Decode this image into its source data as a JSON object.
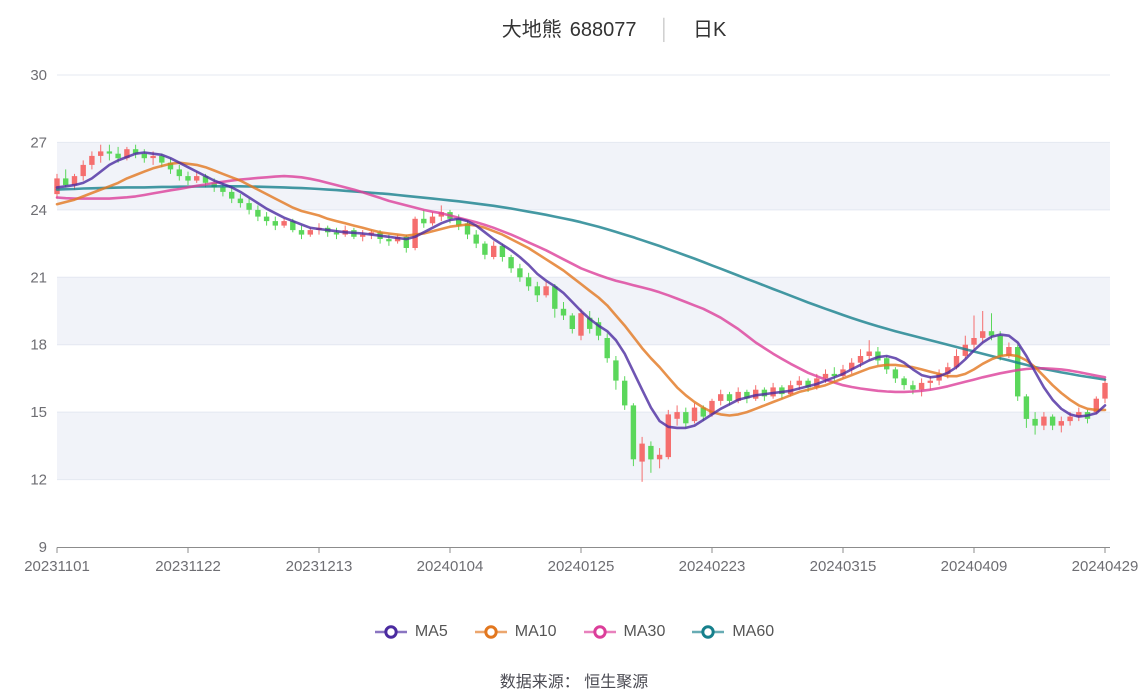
{
  "title": {
    "stock_name": "大地熊",
    "stock_code": "688077",
    "separator": "│",
    "period": "日K"
  },
  "footer": {
    "text": "数据来源： 恒生聚源"
  },
  "colors": {
    "background": "#ffffff",
    "band": "#f1f3f9",
    "grid": "#e4e8f1",
    "axis": "#8c8c8c",
    "axis_label": "#6e6e73",
    "title_text": "#333333",
    "separator_color": "#cccccc",
    "legend_text": "#555555",
    "footer_text": "#4a4a52",
    "up": "#f56e6e",
    "down": "#5bd75b"
  },
  "chart_data": {
    "type": "candlestick",
    "title": "大地熊 688077 日K",
    "legend_position": "bottom",
    "grid": "horizontal-only",
    "ylim": [
      9,
      30
    ],
    "y_axis": {
      "min": 9,
      "max": 30,
      "ticks": [
        9,
        12,
        15,
        18,
        21,
        24,
        27,
        30
      ]
    },
    "x_axis": {
      "labels": [
        "20231101",
        "20231122",
        "20231213",
        "20240104",
        "20240125",
        "20240223",
        "20240315",
        "20240409",
        "20240429"
      ],
      "tick_indices": [
        0,
        15,
        30,
        45,
        60,
        75,
        90,
        105,
        120
      ]
    },
    "bands": [
      [
        24,
        27
      ],
      [
        18,
        21
      ],
      [
        12,
        15
      ]
    ],
    "candles": [
      [
        24.7,
        25.6,
        24.5,
        25.4
      ],
      [
        25.4,
        25.8,
        25.0,
        25.1
      ],
      [
        25.1,
        25.6,
        24.9,
        25.5
      ],
      [
        25.5,
        26.2,
        25.3,
        26.0
      ],
      [
        26.0,
        26.6,
        25.8,
        26.4
      ],
      [
        26.4,
        26.9,
        26.1,
        26.6
      ],
      [
        26.6,
        26.9,
        26.2,
        26.5
      ],
      [
        26.5,
        26.8,
        26.1,
        26.3
      ],
      [
        26.3,
        26.8,
        26.2,
        26.7
      ],
      [
        26.7,
        26.9,
        26.3,
        26.5
      ],
      [
        26.5,
        26.7,
        26.1,
        26.3
      ],
      [
        26.3,
        26.6,
        26.0,
        26.4
      ],
      [
        26.4,
        26.5,
        25.9,
        26.1
      ],
      [
        26.1,
        26.3,
        25.6,
        25.8
      ],
      [
        25.8,
        26.0,
        25.3,
        25.5
      ],
      [
        25.5,
        25.7,
        25.1,
        25.3
      ],
      [
        25.3,
        25.7,
        25.2,
        25.5
      ],
      [
        25.5,
        25.6,
        25.0,
        25.2
      ],
      [
        25.2,
        25.4,
        24.8,
        25.0
      ],
      [
        25.0,
        25.2,
        24.6,
        24.8
      ],
      [
        24.8,
        25.0,
        24.3,
        24.5
      ],
      [
        24.5,
        24.7,
        24.1,
        24.3
      ],
      [
        24.3,
        24.5,
        23.8,
        24.0
      ],
      [
        24.0,
        24.2,
        23.5,
        23.7
      ],
      [
        23.7,
        23.9,
        23.3,
        23.5
      ],
      [
        23.5,
        23.7,
        23.1,
        23.3
      ],
      [
        23.3,
        23.6,
        23.2,
        23.5
      ],
      [
        23.5,
        23.6,
        23.0,
        23.1
      ],
      [
        23.1,
        23.3,
        22.7,
        22.9
      ],
      [
        22.9,
        23.2,
        22.8,
        23.1
      ],
      [
        23.1,
        23.4,
        22.9,
        23.2
      ],
      [
        23.2,
        23.3,
        22.8,
        23.0
      ],
      [
        23.0,
        23.2,
        22.7,
        22.9
      ],
      [
        22.9,
        23.3,
        22.8,
        23.1
      ],
      [
        23.1,
        23.2,
        22.7,
        22.8
      ],
      [
        22.8,
        23.1,
        22.6,
        22.9
      ],
      [
        22.9,
        23.1,
        22.7,
        23.0
      ],
      [
        23.0,
        23.1,
        22.5,
        22.7
      ],
      [
        22.7,
        22.9,
        22.4,
        22.6
      ],
      [
        22.6,
        22.9,
        22.5,
        22.8
      ],
      [
        22.8,
        22.9,
        22.1,
        22.3
      ],
      [
        22.3,
        23.7,
        22.2,
        23.6
      ],
      [
        23.6,
        24.0,
        23.2,
        23.4
      ],
      [
        23.4,
        23.9,
        23.3,
        23.7
      ],
      [
        23.7,
        24.2,
        23.5,
        23.9
      ],
      [
        23.9,
        24.0,
        23.4,
        23.6
      ],
      [
        23.6,
        23.8,
        23.1,
        23.3
      ],
      [
        23.4,
        23.5,
        22.7,
        22.9
      ],
      [
        22.9,
        23.1,
        22.3,
        22.5
      ],
      [
        22.5,
        22.6,
        21.8,
        22.0
      ],
      [
        21.9,
        22.6,
        21.8,
        22.4
      ],
      [
        22.4,
        22.5,
        21.7,
        21.9
      ],
      [
        21.9,
        22.0,
        21.2,
        21.4
      ],
      [
        21.4,
        21.6,
        20.8,
        21.0
      ],
      [
        21.0,
        21.2,
        20.4,
        20.6
      ],
      [
        20.6,
        20.8,
        19.9,
        20.2
      ],
      [
        20.2,
        20.8,
        20.1,
        20.6
      ],
      [
        20.6,
        20.7,
        19.2,
        19.6
      ],
      [
        19.6,
        19.9,
        19.1,
        19.3
      ],
      [
        19.3,
        19.4,
        18.5,
        18.7
      ],
      [
        18.4,
        19.6,
        18.2,
        19.4
      ],
      [
        19.2,
        19.5,
        18.5,
        18.7
      ],
      [
        19.0,
        19.2,
        18.2,
        18.4
      ],
      [
        18.3,
        18.5,
        17.2,
        17.4
      ],
      [
        17.3,
        17.5,
        16.0,
        16.4
      ],
      [
        16.4,
        16.6,
        15.1,
        15.3
      ],
      [
        15.3,
        15.4,
        12.6,
        12.9
      ],
      [
        12.8,
        13.9,
        11.9,
        13.6
      ],
      [
        13.5,
        13.7,
        12.3,
        12.9
      ],
      [
        12.9,
        13.4,
        12.5,
        13.1
      ],
      [
        13.0,
        15.1,
        12.9,
        14.9
      ],
      [
        14.7,
        15.3,
        14.4,
        15.0
      ],
      [
        15.0,
        15.2,
        14.3,
        14.5
      ],
      [
        14.6,
        15.4,
        14.5,
        15.2
      ],
      [
        15.2,
        15.3,
        14.6,
        14.8
      ],
      [
        14.9,
        15.6,
        14.8,
        15.5
      ],
      [
        15.5,
        16.0,
        15.3,
        15.8
      ],
      [
        15.8,
        15.9,
        15.3,
        15.5
      ],
      [
        15.5,
        16.1,
        15.4,
        15.9
      ],
      [
        15.9,
        16.0,
        15.4,
        15.6
      ],
      [
        15.6,
        16.2,
        15.5,
        16.0
      ],
      [
        16.0,
        16.1,
        15.5,
        15.7
      ],
      [
        15.7,
        16.3,
        15.6,
        16.1
      ],
      [
        16.1,
        16.2,
        15.6,
        15.8
      ],
      [
        15.8,
        16.4,
        15.7,
        16.2
      ],
      [
        16.2,
        16.6,
        16.0,
        16.4
      ],
      [
        16.4,
        16.5,
        15.9,
        16.1
      ],
      [
        16.1,
        16.7,
        16.0,
        16.5
      ],
      [
        16.5,
        16.9,
        16.3,
        16.7
      ],
      [
        16.7,
        17.0,
        16.4,
        16.6
      ],
      [
        16.6,
        17.1,
        16.5,
        16.9
      ],
      [
        16.9,
        17.4,
        16.7,
        17.2
      ],
      [
        17.2,
        17.8,
        17.0,
        17.5
      ],
      [
        17.5,
        18.2,
        17.3,
        17.7
      ],
      [
        17.7,
        17.9,
        17.1,
        17.3
      ],
      [
        17.4,
        17.5,
        16.7,
        16.9
      ],
      [
        16.9,
        17.0,
        16.3,
        16.5
      ],
      [
        16.5,
        16.6,
        16.0,
        16.2
      ],
      [
        16.2,
        16.4,
        15.8,
        16.0
      ],
      [
        16.0,
        16.5,
        15.7,
        16.3
      ],
      [
        16.3,
        16.6,
        16.0,
        16.4
      ],
      [
        16.4,
        16.9,
        16.2,
        16.7
      ],
      [
        16.7,
        17.2,
        16.5,
        17.0
      ],
      [
        17.0,
        17.8,
        16.9,
        17.5
      ],
      [
        17.5,
        18.4,
        17.4,
        18.0
      ],
      [
        18.0,
        19.3,
        17.8,
        18.3
      ],
      [
        18.3,
        19.5,
        18.1,
        18.6
      ],
      [
        18.6,
        19.4,
        18.2,
        18.4
      ],
      [
        18.4,
        18.6,
        17.3,
        17.5
      ],
      [
        17.5,
        18.1,
        17.4,
        17.9
      ],
      [
        17.9,
        18.0,
        15.5,
        15.7
      ],
      [
        15.7,
        15.8,
        14.3,
        14.7
      ],
      [
        14.7,
        15.0,
        14.0,
        14.4
      ],
      [
        14.4,
        15.0,
        14.2,
        14.8
      ],
      [
        14.8,
        14.9,
        14.2,
        14.4
      ],
      [
        14.4,
        14.8,
        14.1,
        14.6
      ],
      [
        14.6,
        15.0,
        14.4,
        14.8
      ],
      [
        14.8,
        15.2,
        14.6,
        15.0
      ],
      [
        15.0,
        15.1,
        14.5,
        14.7
      ],
      [
        15.0,
        15.7,
        14.9,
        15.6
      ],
      [
        15.6,
        16.5,
        15.4,
        16.3
      ]
    ],
    "series": [
      {
        "name": "MA5",
        "color": "#4b2ba0",
        "values": [
          25.0,
          25.05,
          25.1,
          25.2,
          25.4,
          25.7,
          26.0,
          26.2,
          26.35,
          26.5,
          26.55,
          26.5,
          26.45,
          26.3,
          26.1,
          25.9,
          25.7,
          25.5,
          25.3,
          25.15,
          25.0,
          24.8,
          24.55,
          24.3,
          24.05,
          23.85,
          23.65,
          23.5,
          23.35,
          23.2,
          23.15,
          23.1,
          23.05,
          23.0,
          22.98,
          22.95,
          22.9,
          22.85,
          22.8,
          22.75,
          22.7,
          22.8,
          23.0,
          23.2,
          23.4,
          23.55,
          23.6,
          23.5,
          23.3,
          23.0,
          22.7,
          22.45,
          22.2,
          21.9,
          21.55,
          21.15,
          20.85,
          20.6,
          20.3,
          19.9,
          19.5,
          19.15,
          18.85,
          18.6,
          18.2,
          17.6,
          16.8,
          16.0,
          15.2,
          14.6,
          14.35,
          14.3,
          14.3,
          14.4,
          14.65,
          14.9,
          15.15,
          15.35,
          15.55,
          15.65,
          15.75,
          15.8,
          15.85,
          15.9,
          15.95,
          16.05,
          16.15,
          16.25,
          16.4,
          16.55,
          16.7,
          16.9,
          17.1,
          17.3,
          17.45,
          17.5,
          17.4,
          17.2,
          16.9,
          16.65,
          16.55,
          16.6,
          16.75,
          17.0,
          17.35,
          17.75,
          18.1,
          18.35,
          18.45,
          18.4,
          18.1,
          17.5,
          16.8,
          16.1,
          15.55,
          15.15,
          14.9,
          14.8,
          14.85,
          14.95,
          15.3
        ]
      },
      {
        "name": "MA10",
        "color": "#e2771f",
        "values": [
          24.25,
          24.35,
          24.45,
          24.6,
          24.75,
          24.9,
          25.05,
          25.2,
          25.4,
          25.55,
          25.7,
          25.85,
          25.95,
          26.05,
          26.1,
          26.05,
          26.0,
          25.9,
          25.75,
          25.6,
          25.45,
          25.3,
          25.1,
          24.9,
          24.7,
          24.5,
          24.3,
          24.1,
          23.95,
          23.85,
          23.75,
          23.6,
          23.5,
          23.4,
          23.3,
          23.2,
          23.1,
          23.0,
          22.95,
          22.9,
          22.85,
          22.9,
          22.95,
          23.05,
          23.15,
          23.25,
          23.3,
          23.35,
          23.3,
          23.2,
          23.05,
          22.9,
          22.7,
          22.5,
          22.3,
          22.05,
          21.8,
          21.55,
          21.3,
          21.0,
          20.7,
          20.4,
          20.1,
          19.75,
          19.3,
          18.85,
          18.35,
          17.85,
          17.4,
          17.0,
          16.55,
          16.1,
          15.75,
          15.45,
          15.2,
          15.0,
          14.9,
          14.85,
          14.9,
          15.0,
          15.15,
          15.3,
          15.45,
          15.6,
          15.75,
          15.9,
          16.0,
          16.1,
          16.2,
          16.35,
          16.5,
          16.65,
          16.8,
          16.95,
          17.05,
          17.1,
          17.1,
          17.05,
          17.0,
          16.9,
          16.8,
          16.7,
          16.6,
          16.6,
          16.7,
          16.9,
          17.15,
          17.35,
          17.5,
          17.55,
          17.5,
          17.3,
          17.0,
          16.6,
          16.2,
          15.85,
          15.55,
          15.3,
          15.15,
          15.1,
          15.1
        ]
      },
      {
        "name": "MA30",
        "color": "#dc3e9a",
        "values": [
          24.55,
          24.52,
          24.5,
          24.5,
          24.5,
          24.5,
          24.5,
          24.53,
          24.56,
          24.6,
          24.66,
          24.73,
          24.8,
          24.87,
          24.93,
          25.0,
          25.07,
          25.13,
          25.2,
          25.25,
          25.3,
          25.35,
          25.38,
          25.42,
          25.45,
          25.48,
          25.5,
          25.48,
          25.45,
          25.38,
          25.3,
          25.2,
          25.1,
          25.0,
          24.9,
          24.78,
          24.65,
          24.53,
          24.4,
          24.3,
          24.2,
          24.1,
          24.0,
          23.92,
          23.85,
          23.75,
          23.65,
          23.55,
          23.45,
          23.33,
          23.2,
          23.05,
          22.9,
          22.73,
          22.55,
          22.38,
          22.2,
          22.0,
          21.8,
          21.6,
          21.4,
          21.25,
          21.1,
          20.97,
          20.85,
          20.75,
          20.65,
          20.55,
          20.45,
          20.33,
          20.2,
          20.05,
          19.9,
          19.75,
          19.6,
          19.4,
          19.2,
          18.95,
          18.7,
          18.4,
          18.1,
          17.85,
          17.6,
          17.37,
          17.15,
          16.95,
          16.75,
          16.6,
          16.45,
          16.32,
          16.2,
          16.12,
          16.05,
          16.0,
          15.95,
          15.92,
          15.9,
          15.9,
          15.92,
          15.95,
          16.0,
          16.07,
          16.15,
          16.25,
          16.35,
          16.45,
          16.55,
          16.64,
          16.73,
          16.8,
          16.87,
          16.92,
          16.95,
          16.95,
          16.93,
          16.9,
          16.85,
          16.78,
          16.7,
          16.62,
          16.55
        ]
      },
      {
        "name": "MA60",
        "color": "#16808c",
        "values": [
          24.9,
          24.92,
          24.93,
          24.95,
          24.96,
          24.97,
          24.98,
          24.99,
          25.0,
          25.0,
          25.0,
          25.01,
          25.02,
          25.02,
          25.03,
          25.03,
          25.04,
          25.04,
          25.05,
          25.05,
          25.05,
          25.05,
          25.04,
          25.03,
          25.02,
          25.01,
          25.0,
          24.98,
          24.97,
          24.95,
          24.93,
          24.9,
          24.88,
          24.85,
          24.82,
          24.79,
          24.76,
          24.73,
          24.7,
          24.66,
          24.62,
          24.58,
          24.54,
          24.5,
          24.46,
          24.42,
          24.38,
          24.33,
          24.28,
          24.23,
          24.18,
          24.12,
          24.06,
          23.99,
          23.92,
          23.85,
          23.78,
          23.7,
          23.62,
          23.54,
          23.45,
          23.35,
          23.25,
          23.14,
          23.02,
          22.9,
          22.78,
          22.65,
          22.52,
          22.39,
          22.25,
          22.11,
          21.97,
          21.83,
          21.68,
          21.53,
          21.38,
          21.23,
          21.08,
          20.93,
          20.78,
          20.63,
          20.48,
          20.33,
          20.18,
          20.03,
          19.88,
          19.74,
          19.6,
          19.46,
          19.32,
          19.19,
          19.06,
          18.94,
          18.82,
          18.71,
          18.6,
          18.5,
          18.4,
          18.3,
          18.2,
          18.1,
          18.0,
          17.9,
          17.8,
          17.7,
          17.6,
          17.5,
          17.4,
          17.3,
          17.2,
          17.1,
          17.0,
          16.92,
          16.85,
          16.77,
          16.7,
          16.63,
          16.57,
          16.51,
          16.45
        ]
      }
    ]
  }
}
